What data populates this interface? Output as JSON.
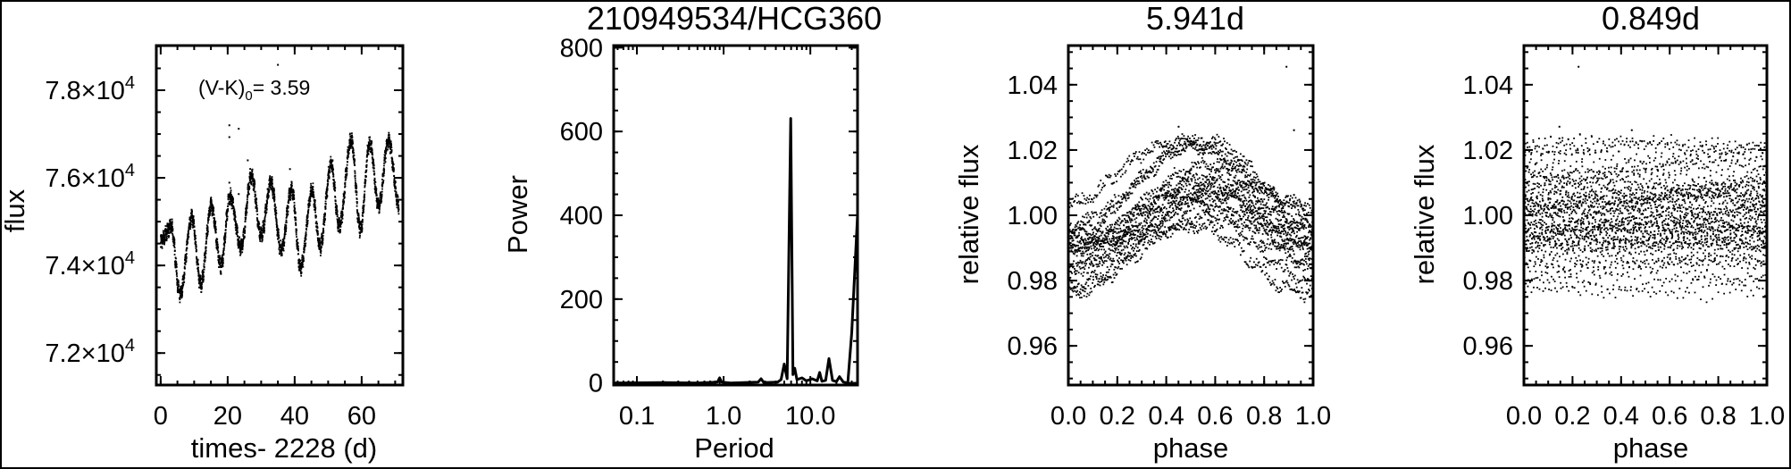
{
  "figure_title": "210949534/HCG360",
  "chart_data": [
    {
      "type": "scatter",
      "title": "",
      "xlabel": "times- 2228 (d)",
      "ylabel": "flux",
      "annotation": {
        "text": "(V-K)",
        "subscript": "0",
        "value": "= 3.59"
      },
      "xlim": [
        -1.3,
        72.3
      ],
      "ylim": [
        71270,
        79020
      ],
      "xticks": [
        {
          "v": 0,
          "label": "0"
        },
        {
          "v": 20,
          "label": "20"
        },
        {
          "v": 40,
          "label": "40"
        },
        {
          "v": 60,
          "label": "60"
        }
      ],
      "yticks": [
        {
          "v": 72000,
          "label": "7.2×10",
          "exp": "4"
        },
        {
          "v": 74000,
          "label": "7.4×10",
          "exp": "4"
        },
        {
          "v": 76000,
          "label": "7.6×10",
          "exp": "4"
        },
        {
          "v": 78000,
          "label": "7.8×10",
          "exp": "4"
        }
      ],
      "light_curve_extrema": {
        "t": [
          0,
          3.1,
          5.8,
          9.3,
          12.0,
          15.1,
          18.0,
          20.7,
          24.0,
          27.1,
          30.0,
          32.9,
          36.0,
          39.1,
          41.8,
          45.2,
          47.6,
          50.9,
          53.3,
          56.9,
          59.6,
          62.4,
          65.1,
          68.0,
          71.1
        ],
        "flux": [
          74550,
          74890,
          73330,
          75100,
          73570,
          75370,
          74010,
          75570,
          74410,
          76050,
          74690,
          75880,
          74350,
          75740,
          73960,
          75710,
          74410,
          76320,
          74890,
          76860,
          74820,
          76800,
          75370,
          76860,
          75370
        ]
      },
      "outliers": {
        "t": [
          20.5,
          20.5,
          23.3,
          35.0,
          26.0,
          38.6,
          20.5,
          23.3
        ],
        "flux": [
          77200,
          76930,
          77120,
          78580,
          76400,
          76200,
          75890,
          75630
        ]
      }
    },
    {
      "type": "line",
      "title": "",
      "xlabel": "Period",
      "ylabel": "Power",
      "xscale": "log",
      "xlim": [
        0.054,
        35
      ],
      "ylim": [
        -5,
        805
      ],
      "xticks": [
        {
          "v": 0.1,
          "label": "0.1"
        },
        {
          "v": 1.0,
          "label": "1.0"
        },
        {
          "v": 10.0,
          "label": "10.0"
        }
      ],
      "yticks": [
        {
          "v": 0,
          "label": "0"
        },
        {
          "v": 200,
          "label": "200"
        },
        {
          "v": 400,
          "label": "400"
        },
        {
          "v": 600,
          "label": "600"
        },
        {
          "v": 800,
          "label": "800"
        }
      ],
      "x": [
        0.054,
        0.2,
        0.5,
        0.85,
        0.9,
        0.95,
        1.2,
        2.5,
        2.7,
        2.9,
        4.2,
        4.6,
        5.0,
        5.4,
        5.94,
        6.3,
        6.6,
        7.0,
        8.0,
        9.0,
        10.5,
        12.0,
        12.8,
        13.6,
        15.0,
        16.4,
        18.0,
        20.0,
        21.7,
        24.0,
        27.0,
        30.0,
        35.0
      ],
      "y": [
        0,
        1,
        0,
        2,
        12,
        2,
        0,
        2,
        10,
        1,
        2,
        8,
        45,
        10,
        631,
        20,
        35,
        8,
        12,
        5,
        10,
        5,
        25,
        4,
        6,
        58,
        6,
        3,
        15,
        2,
        0,
        120,
        400
      ]
    },
    {
      "type": "scatter",
      "title": "5.941d",
      "xlabel": "phase",
      "ylabel": "relative flux",
      "fold_period": 5.941,
      "xlim": [
        0,
        1
      ],
      "ylim": [
        0.948,
        1.052
      ],
      "xticks": [
        {
          "v": 0,
          "label": "0.0"
        },
        {
          "v": 0.2,
          "label": "0.2"
        },
        {
          "v": 0.4,
          "label": "0.4"
        },
        {
          "v": 0.6,
          "label": "0.6"
        },
        {
          "v": 0.8,
          "label": "0.8"
        },
        {
          "v": 1.0,
          "label": "1.0"
        }
      ],
      "yticks": [
        {
          "v": 0.96,
          "label": "0.96"
        },
        {
          "v": 0.98,
          "label": "0.98"
        },
        {
          "v": 1.0,
          "label": "1.00"
        },
        {
          "v": 1.02,
          "label": "1.02"
        },
        {
          "v": 1.04,
          "label": "1.04"
        }
      ]
    },
    {
      "type": "scatter",
      "title": "0.849d",
      "xlabel": "phase",
      "ylabel": "relative flux",
      "fold_period": 0.849,
      "xlim": [
        0,
        1
      ],
      "ylim": [
        0.948,
        1.052
      ],
      "xticks": [
        {
          "v": 0,
          "label": "0.0"
        },
        {
          "v": 0.2,
          "label": "0.2"
        },
        {
          "v": 0.4,
          "label": "0.4"
        },
        {
          "v": 0.6,
          "label": "0.6"
        },
        {
          "v": 0.8,
          "label": "0.8"
        },
        {
          "v": 1.0,
          "label": "1.0"
        }
      ],
      "yticks": [
        {
          "v": 0.96,
          "label": "0.96"
        },
        {
          "v": 0.98,
          "label": "0.98"
        },
        {
          "v": 1.0,
          "label": "1.00"
        },
        {
          "v": 1.02,
          "label": "1.02"
        },
        {
          "v": 1.04,
          "label": "1.04"
        }
      ]
    }
  ]
}
